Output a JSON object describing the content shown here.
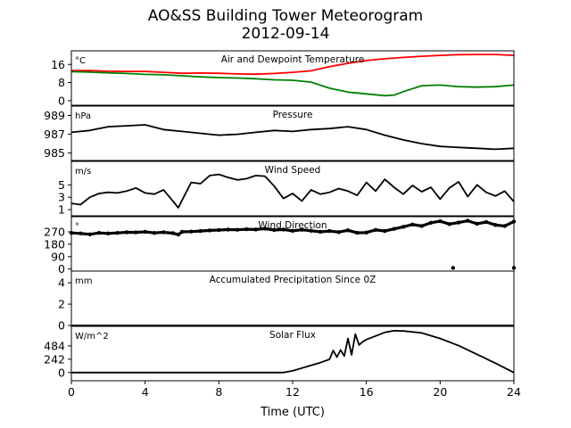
{
  "title": "AO&SS Building Tower Meteorogram",
  "date": "2012-09-14",
  "xlabel": "Time (UTC)",
  "chart_data": [
    {
      "type": "line",
      "label": "Air and Dewpoint Temperature",
      "unit": "°C",
      "x_range": [
        0,
        24
      ],
      "ylim": [
        -2,
        22
      ],
      "yticks": [
        0,
        8,
        16
      ],
      "ytick_labels": [
        "0",
        "8",
        "16"
      ],
      "series": [
        {
          "color": "#ff0000",
          "x": [
            0,
            1,
            2,
            3,
            4,
            5,
            6,
            7,
            8,
            9,
            10,
            11,
            12,
            13,
            14,
            15,
            16,
            17,
            18,
            19,
            20,
            21,
            22,
            23,
            24
          ],
          "values": [
            13.3,
            13.3,
            13.0,
            12.9,
            12.9,
            12.5,
            12.1,
            12.2,
            12.1,
            11.8,
            11.7,
            12.0,
            12.5,
            13.2,
            15.0,
            16.5,
            17.7,
            18.5,
            19.1,
            19.6,
            20.0,
            20.3,
            20.4,
            20.4,
            20.0
          ]
        },
        {
          "color": "#008000",
          "x": [
            0,
            1,
            2,
            3,
            4,
            5,
            6,
            7,
            8,
            9,
            10,
            11,
            12,
            13,
            14,
            15,
            16,
            17,
            17.5,
            18,
            19,
            20,
            21,
            22,
            23,
            24
          ],
          "values": [
            12.8,
            12.6,
            12.3,
            12.0,
            11.6,
            11.4,
            11.0,
            10.5,
            10.2,
            10.0,
            9.7,
            9.2,
            9.0,
            8.2,
            5.5,
            3.8,
            3.0,
            2.2,
            2.5,
            4.0,
            6.6,
            6.9,
            6.2,
            6.0,
            6.2,
            6.9
          ]
        }
      ]
    },
    {
      "type": "line",
      "label": "Pressure",
      "unit": "hPa",
      "x_range": [
        0,
        24
      ],
      "ylim": [
        984.2,
        990
      ],
      "yticks": [
        985,
        987,
        989
      ],
      "ytick_labels": [
        "985",
        "987",
        "989"
      ],
      "series": [
        {
          "color": "#000000",
          "x": [
            0,
            1,
            2,
            3,
            4,
            5,
            6,
            7,
            8,
            9,
            10,
            11,
            12,
            13,
            14,
            15,
            16,
            17,
            18,
            19,
            20,
            21,
            22,
            23,
            24
          ],
          "values": [
            987.2,
            987.4,
            987.8,
            987.9,
            988.0,
            987.5,
            987.3,
            987.1,
            986.9,
            987.0,
            987.2,
            987.4,
            987.3,
            987.5,
            987.6,
            987.8,
            987.5,
            986.9,
            986.4,
            986.0,
            985.7,
            985.6,
            985.5,
            985.4,
            985.5
          ]
        }
      ]
    },
    {
      "type": "line",
      "label": "Wind Speed",
      "unit": "m/s",
      "x_range": [
        0,
        24
      ],
      "ylim": [
        0,
        8.8
      ],
      "yticks": [
        1,
        3,
        5
      ],
      "ytick_labels": [
        "1",
        "3",
        "5"
      ],
      "series": [
        {
          "color": "#000000",
          "x": [
            0,
            0.5,
            1,
            1.5,
            2,
            2.5,
            3,
            3.5,
            4,
            4.5,
            5,
            5.5,
            5.8,
            6,
            6.5,
            7,
            7.5,
            8,
            8.5,
            9,
            9.5,
            10,
            10.5,
            11,
            11.5,
            12,
            12.5,
            13,
            13.5,
            14,
            14.5,
            15,
            15.5,
            16,
            16.5,
            17,
            17.5,
            18,
            18.5,
            19,
            19.5,
            20,
            20.5,
            21,
            21.5,
            22,
            22.5,
            23,
            23.5,
            24
          ],
          "values": [
            2.0,
            1.8,
            3.0,
            3.6,
            3.8,
            3.7,
            4.0,
            4.5,
            3.7,
            3.5,
            4.2,
            2.4,
            1.3,
            2.5,
            5.4,
            5.2,
            6.5,
            6.7,
            6.2,
            5.8,
            6.0,
            6.5,
            6.4,
            4.8,
            2.8,
            3.6,
            2.4,
            4.2,
            3.5,
            3.8,
            4.4,
            4.0,
            3.3,
            5.4,
            4.0,
            5.9,
            4.6,
            3.5,
            4.9,
            3.9,
            4.6,
            2.7,
            4.5,
            5.5,
            3.1,
            5.0,
            3.8,
            3.2,
            4.0,
            2.3
          ]
        }
      ]
    },
    {
      "type": "scatter",
      "label": "Wind Direction",
      "unit": "°",
      "x_range": [
        0,
        24
      ],
      "ylim": [
        -15,
        380
      ],
      "yticks": [
        0,
        90,
        180,
        270
      ],
      "ytick_labels": [
        "0",
        "90",
        "180",
        "270"
      ],
      "series": [
        {
          "color": "#000000",
          "x": [
            0,
            0.5,
            1,
            1.5,
            2,
            2.5,
            3,
            3.5,
            4,
            4.5,
            5,
            5.5,
            5.8,
            6,
            6.5,
            7,
            7.5,
            8,
            8.5,
            9,
            9.5,
            10,
            10.5,
            11,
            11.5,
            12,
            12.5,
            13,
            13.5,
            14,
            14.5,
            15,
            15.5,
            16,
            16.5,
            17,
            17.5,
            18,
            18.5,
            19,
            19.5,
            20,
            20.5,
            21,
            21.5,
            22,
            22.5,
            23,
            23.5,
            24,
            20.7,
            24
          ],
          "values": [
            262,
            258,
            252,
            262,
            258,
            262,
            267,
            266,
            270,
            262,
            267,
            260,
            250,
            270,
            272,
            276,
            280,
            283,
            286,
            285,
            289,
            287,
            293,
            283,
            287,
            277,
            285,
            278,
            270,
            276,
            268,
            281,
            263,
            265,
            284,
            276,
            291,
            306,
            323,
            312,
            336,
            347,
            326,
            337,
            350,
            328,
            341,
            320,
            312,
            345,
            8,
            8
          ]
        }
      ]
    },
    {
      "type": "line",
      "label": "Accumulated Precipitation Since 0Z",
      "unit": "mm",
      "x_range": [
        0,
        24
      ],
      "ylim": [
        0,
        5.1
      ],
      "yticks": [
        0,
        2,
        4
      ],
      "ytick_labels": [
        "0",
        "2",
        "4"
      ],
      "series": [
        {
          "color": "#000000",
          "x": [
            0,
            24
          ],
          "values": [
            0,
            0
          ]
        }
      ]
    },
    {
      "type": "line",
      "label": "Solar Flux",
      "unit": "W/m^2",
      "x_range": [
        0,
        24
      ],
      "ylim": [
        -150,
        840
      ],
      "yticks": [
        0,
        242,
        484
      ],
      "ytick_labels": [
        "0",
        "242",
        "484"
      ],
      "series": [
        {
          "color": "#000000",
          "x": [
            0,
            11.5,
            12,
            12.5,
            13,
            13.5,
            14,
            14.2,
            14.4,
            14.6,
            14.8,
            15,
            15.2,
            15.4,
            15.6,
            15.8,
            16,
            17,
            17.5,
            18,
            19,
            20,
            21,
            22,
            23,
            24
          ],
          "values": [
            0,
            0,
            30,
            80,
            130,
            180,
            240,
            400,
            280,
            410,
            300,
            620,
            320,
            700,
            500,
            560,
            600,
            730,
            760,
            755,
            720,
            620,
            490,
            330,
            170,
            0
          ]
        }
      ]
    }
  ],
  "xticks": [
    0,
    4,
    8,
    12,
    16,
    20,
    24
  ],
  "xtick_labels": [
    "0",
    "4",
    "8",
    "12",
    "16",
    "20",
    "24"
  ]
}
